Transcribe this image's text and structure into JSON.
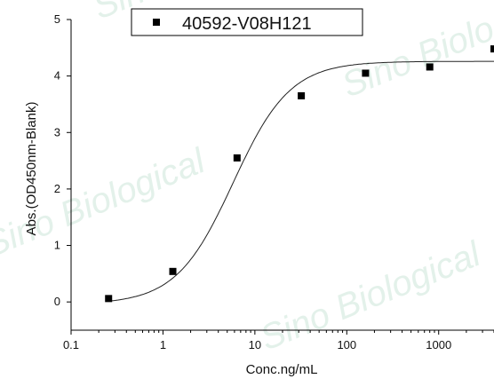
{
  "watermark": "Sino Biological",
  "chart_data": {
    "type": "scatter",
    "title": "",
    "xlabel": "Conc.ng/mL",
    "ylabel": "Abs.(OD450nm-Blank)",
    "xscale": "log",
    "xlim": [
      0.1,
      4000
    ],
    "ylim": [
      -0.5,
      5
    ],
    "xticks": [
      0.1,
      1,
      10,
      100,
      1000
    ],
    "xtick_labels": [
      "0.1",
      "1",
      "10",
      "100",
      "1000"
    ],
    "yticks": [
      0,
      1,
      2,
      3,
      4,
      5
    ],
    "ytick_labels": [
      "0",
      "1",
      "2",
      "3",
      "4",
      "5"
    ],
    "legend": {
      "position": "top-center",
      "entries": [
        "40592-V08H121"
      ]
    },
    "series": [
      {
        "name": "40592-V08H121",
        "marker": "square",
        "color": "#000000",
        "x": [
          0.256,
          1.28,
          6.4,
          32,
          160,
          800,
          4000
        ],
        "y": [
          0.06,
          0.54,
          2.55,
          3.65,
          4.05,
          4.16,
          4.48
        ]
      }
    ],
    "fit_curve": {
      "model": "4PL",
      "bottom": -0.04,
      "top": 4.26,
      "ec50": 5.8,
      "hill": 1.4,
      "x_range": [
        0.256,
        4000
      ]
    }
  }
}
